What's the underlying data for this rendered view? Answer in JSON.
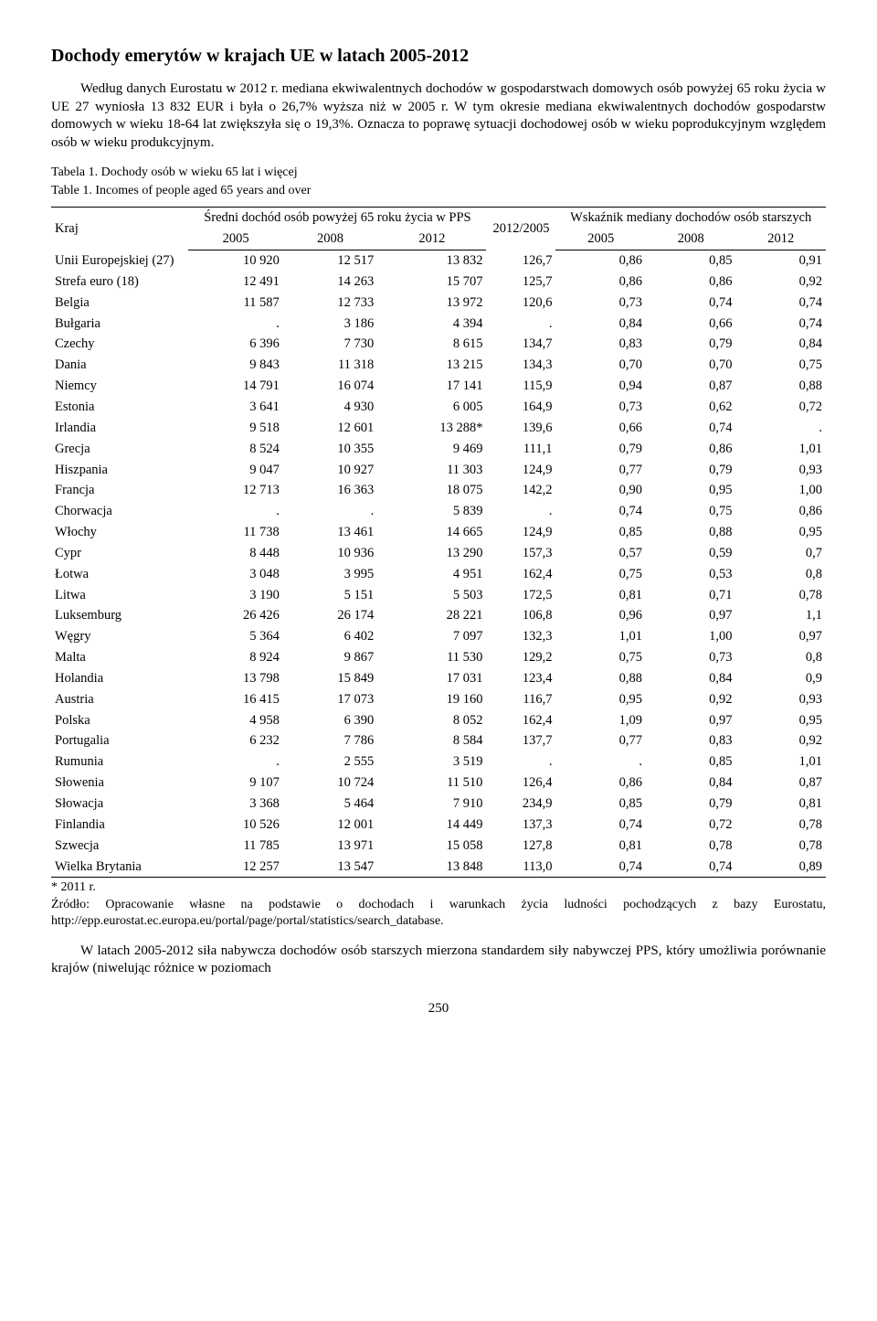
{
  "title": "Dochody emerytów w krajach UE w latach 2005-2012",
  "intro": "Według danych Eurostatu w 2012 r. mediana ekwiwalentnych dochodów w gospodarstwach domowych osób powyżej 65 roku życia w UE 27 wyniosła 13 832 EUR i była o 26,7% wyższa niż w 2005 r. W tym okresie mediana ekwiwalentnych dochodów gospodarstw domowych w wieku 18-64 lat zwiększyła się o 19,3%. Oznacza to poprawę sytuacji dochodowej osób w wieku poprodukcyjnym względem osób w wieku produkcyjnym.",
  "caption_pl": "Tabela 1. Dochody osób w wieku 65 lat i więcej",
  "caption_en": "Table 1. Incomes of people aged 65 years and over",
  "headers": {
    "col_country": "Kraj",
    "group1": "Średni dochód osób powyżej 65 roku życia w PPS",
    "group2": "Wskaźnik mediany dochodów osób starszych",
    "y2005": "2005",
    "y2008": "2008",
    "y2012": "2012",
    "ratio": "2012/2005"
  },
  "rows": [
    [
      "Unii Europejskiej (27)",
      "10 920",
      "12 517",
      "13 832",
      "126,7",
      "0,86",
      "0,85",
      "0,91"
    ],
    [
      "Strefa euro (18)",
      "12 491",
      "14 263",
      "15 707",
      "125,7",
      "0,86",
      "0,86",
      "0,92"
    ],
    [
      "Belgia",
      "11 587",
      "12 733",
      "13 972",
      "120,6",
      "0,73",
      "0,74",
      "0,74"
    ],
    [
      "Bułgaria",
      ".",
      "3 186",
      "4 394",
      ".",
      "0,84",
      "0,66",
      "0,74"
    ],
    [
      "Czechy",
      "6 396",
      "7 730",
      "8 615",
      "134,7",
      "0,83",
      "0,79",
      "0,84"
    ],
    [
      "Dania",
      "9 843",
      "11 318",
      "13 215",
      "134,3",
      "0,70",
      "0,70",
      "0,75"
    ],
    [
      "Niemcy",
      "14 791",
      "16 074",
      "17 141",
      "115,9",
      "0,94",
      "0,87",
      "0,88"
    ],
    [
      "Estonia",
      "3 641",
      "4 930",
      "6 005",
      "164,9",
      "0,73",
      "0,62",
      "0,72"
    ],
    [
      "Irlandia",
      "9 518",
      "12 601",
      "13 288*",
      "139,6",
      "0,66",
      "0,74",
      "."
    ],
    [
      "Grecja",
      "8 524",
      "10 355",
      "9 469",
      "111,1",
      "0,79",
      "0,86",
      "1,01"
    ],
    [
      "Hiszpania",
      "9 047",
      "10 927",
      "11 303",
      "124,9",
      "0,77",
      "0,79",
      "0,93"
    ],
    [
      "Francja",
      "12 713",
      "16 363",
      "18 075",
      "142,2",
      "0,90",
      "0,95",
      "1,00"
    ],
    [
      "Chorwacja",
      ".",
      ".",
      "5 839",
      ".",
      "0,74",
      "0,75",
      "0,86"
    ],
    [
      "Włochy",
      "11 738",
      "13 461",
      "14 665",
      "124,9",
      "0,85",
      "0,88",
      "0,95"
    ],
    [
      "Cypr",
      "8 448",
      "10 936",
      "13 290",
      "157,3",
      "0,57",
      "0,59",
      "0,7"
    ],
    [
      "Łotwa",
      "3 048",
      "3 995",
      "4 951",
      "162,4",
      "0,75",
      "0,53",
      "0,8"
    ],
    [
      "Litwa",
      "3 190",
      "5 151",
      "5 503",
      "172,5",
      "0,81",
      "0,71",
      "0,78"
    ],
    [
      "Luksemburg",
      "26 426",
      "26 174",
      "28 221",
      "106,8",
      "0,96",
      "0,97",
      "1,1"
    ],
    [
      "Węgry",
      "5 364",
      "6 402",
      "7 097",
      "132,3",
      "1,01",
      "1,00",
      "0,97"
    ],
    [
      "Malta",
      "8 924",
      "9 867",
      "11 530",
      "129,2",
      "0,75",
      "0,73",
      "0,8"
    ],
    [
      "Holandia",
      "13 798",
      "15 849",
      "17 031",
      "123,4",
      "0,88",
      "0,84",
      "0,9"
    ],
    [
      "Austria",
      "16 415",
      "17 073",
      "19 160",
      "116,7",
      "0,95",
      "0,92",
      "0,93"
    ],
    [
      "Polska",
      "4 958",
      "6 390",
      "8 052",
      "162,4",
      "1,09",
      "0,97",
      "0,95"
    ],
    [
      "Portugalia",
      "6 232",
      "7 786",
      "8 584",
      "137,7",
      "0,77",
      "0,83",
      "0,92"
    ],
    [
      "Rumunia",
      ".",
      "2 555",
      "3 519",
      ".",
      ".",
      "0,85",
      "1,01"
    ],
    [
      "Słowenia",
      "9 107",
      "10 724",
      "11 510",
      "126,4",
      "0,86",
      "0,84",
      "0,87"
    ],
    [
      "Słowacja",
      "3 368",
      "5 464",
      "7 910",
      "234,9",
      "0,85",
      "0,79",
      "0,81"
    ],
    [
      "Finlandia",
      "10 526",
      "12 001",
      "14 449",
      "137,3",
      "0,74",
      "0,72",
      "0,78"
    ],
    [
      "Szwecja",
      "11 785",
      "13 971",
      "15 058",
      "127,8",
      "0,81",
      "0,78",
      "0,78"
    ],
    [
      "Wielka Brytania",
      "12 257",
      "13 547",
      "13 848",
      "113,0",
      "0,74",
      "0,74",
      "0,89"
    ]
  ],
  "footnote": "* 2011 r.",
  "source": "Źródło: Opracowanie własne na podstawie o dochodach i warunkach życia ludności pochodzących z bazy Eurostatu, http://epp.eurostat.ec.europa.eu/portal/page/portal/statistics/search_database.",
  "closing": "W latach 2005-2012 siła nabywcza dochodów osób starszych mierzona standardem siły nabywczej PPS, który umożliwia porównanie krajów (niwelując różnice w poziomach",
  "page_number": "250"
}
